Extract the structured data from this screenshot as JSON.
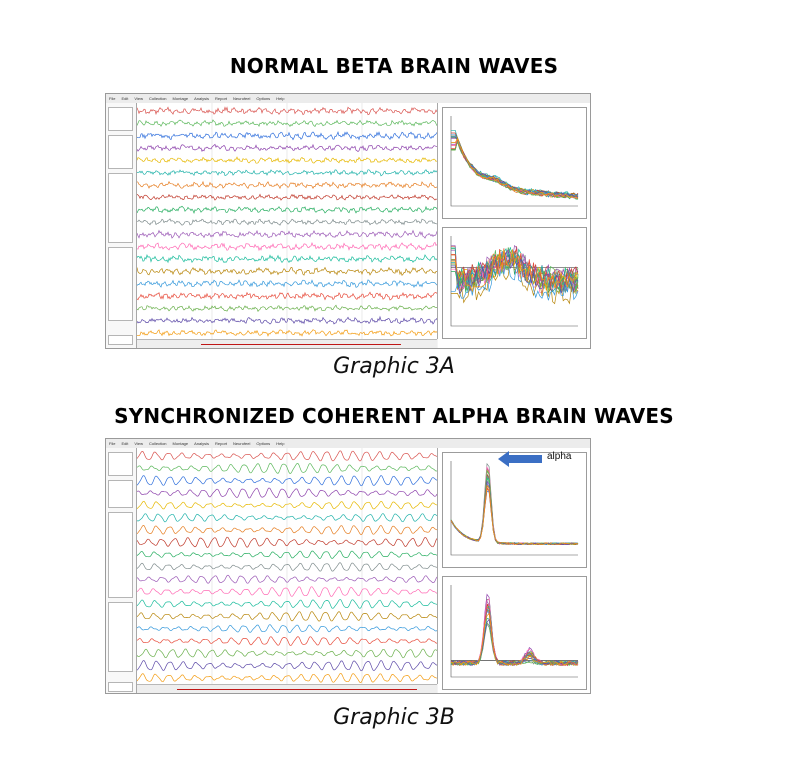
{
  "figure_a": {
    "heading": "NORMAL BETA BRAIN WAVES",
    "caption": "Graphic 3A"
  },
  "figure_b": {
    "heading": "SYNCHRONIZED COHERENT ALPHA BRAIN WAVES",
    "caption": "Graphic 3B",
    "annotation": "alpha"
  },
  "menu_items": [
    "File",
    "Edit",
    "View",
    "Collection",
    "Montage",
    "Analysis",
    "Report",
    "Neurofeel",
    "Options",
    "Help"
  ],
  "trace_colors": [
    "#d9534f",
    "#5cb85c",
    "#2f6fdc",
    "#8e44ad",
    "#e6b800",
    "#20b2aa",
    "#e67e22",
    "#c0392b",
    "#27ae60",
    "#7f8c8d",
    "#9b59b6",
    "#ff69b4",
    "#1abc9c",
    "#b8860b",
    "#3498db",
    "#e74c3c",
    "#6ab04c",
    "#5d4aa8",
    "#f39c12"
  ],
  "arrow_color": "#3b6fc4"
}
